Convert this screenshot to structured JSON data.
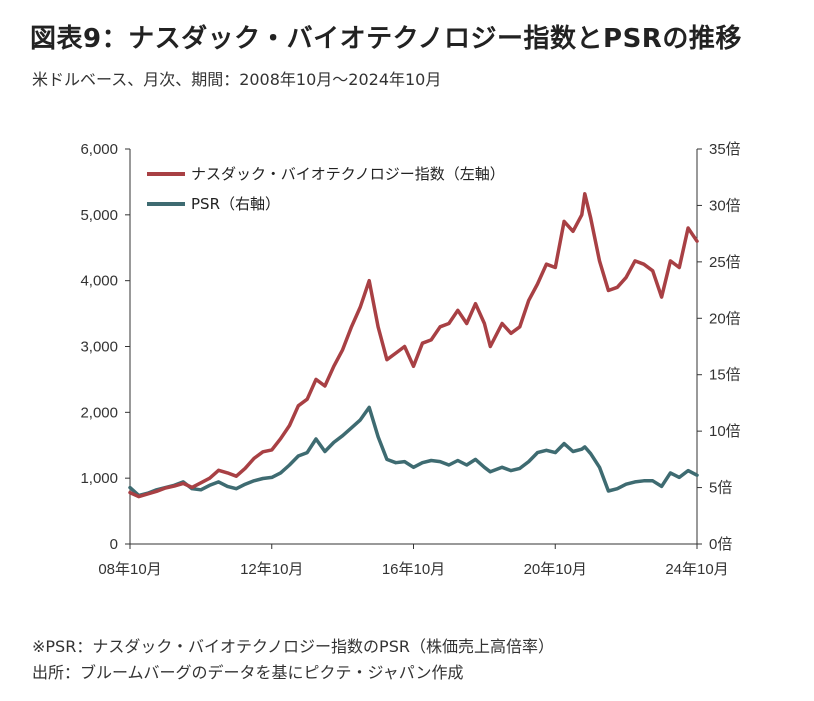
{
  "title": "図表9：ナスダック・バイオテクノロジー指数とPSRの推移",
  "subtitle": "米ドルベース、月次、期間：2008年10月～2024年10月",
  "notes": [
    "※PSR：ナスダック・バイオテクノロジー指数のPSR（株価売上高倍率）",
    "出所：ブルームバーグのデータを基にピクテ・ジャパン作成"
  ],
  "colors": {
    "index": "#a84044",
    "psr": "#3e6b71",
    "axis": "#333333"
  },
  "chart_data": {
    "type": "line",
    "grid": false,
    "legend_position": "top-left",
    "x_ticks": [
      "08年10月",
      "12年10月",
      "16年10月",
      "20年10月",
      "24年10月"
    ],
    "y_left": {
      "lim": [
        0,
        6000
      ],
      "ticks": [
        "0",
        "1,000",
        "2,000",
        "3,000",
        "4,000",
        "5,000",
        "6,000"
      ]
    },
    "y_right": {
      "lim": [
        0,
        35
      ],
      "ticks": [
        "0倍",
        "5倍",
        "10倍",
        "15倍",
        "20倍",
        "25倍",
        "30倍",
        "35倍"
      ]
    },
    "x_range": [
      "2008-10",
      "2024-10"
    ],
    "series": [
      {
        "name": "ナスダック・バイオテクノロジー指数（左軸）",
        "axis": "left",
        "color": "#a84044",
        "points": [
          [
            "2008-10",
            780
          ],
          [
            "2009-01",
            720
          ],
          [
            "2009-04",
            760
          ],
          [
            "2009-07",
            800
          ],
          [
            "2009-10",
            850
          ],
          [
            "2010-01",
            880
          ],
          [
            "2010-04",
            920
          ],
          [
            "2010-07",
            860
          ],
          [
            "2010-10",
            930
          ],
          [
            "2011-01",
            1000
          ],
          [
            "2011-04",
            1120
          ],
          [
            "2011-07",
            1080
          ],
          [
            "2011-10",
            1030
          ],
          [
            "2012-01",
            1150
          ],
          [
            "2012-04",
            1300
          ],
          [
            "2012-07",
            1400
          ],
          [
            "2012-10",
            1430
          ],
          [
            "2013-01",
            1600
          ],
          [
            "2013-04",
            1800
          ],
          [
            "2013-07",
            2100
          ],
          [
            "2013-10",
            2200
          ],
          [
            "2014-01",
            2500
          ],
          [
            "2014-04",
            2400
          ],
          [
            "2014-07",
            2700
          ],
          [
            "2014-10",
            2950
          ],
          [
            "2015-01",
            3300
          ],
          [
            "2015-04",
            3600
          ],
          [
            "2015-07",
            4000
          ],
          [
            "2015-10",
            3300
          ],
          [
            "2016-01",
            2800
          ],
          [
            "2016-04",
            2900
          ],
          [
            "2016-07",
            3000
          ],
          [
            "2016-10",
            2700
          ],
          [
            "2017-01",
            3050
          ],
          [
            "2017-04",
            3100
          ],
          [
            "2017-07",
            3300
          ],
          [
            "2017-10",
            3350
          ],
          [
            "2018-01",
            3550
          ],
          [
            "2018-04",
            3350
          ],
          [
            "2018-07",
            3650
          ],
          [
            "2018-10",
            3350
          ],
          [
            "2018-12",
            3000
          ],
          [
            "2019-04",
            3350
          ],
          [
            "2019-07",
            3200
          ],
          [
            "2019-10",
            3300
          ],
          [
            "2020-01",
            3700
          ],
          [
            "2020-04",
            3950
          ],
          [
            "2020-07",
            4250
          ],
          [
            "2020-10",
            4200
          ],
          [
            "2021-01",
            4900
          ],
          [
            "2021-04",
            4750
          ],
          [
            "2021-07",
            5000
          ],
          [
            "2021-08",
            5320
          ],
          [
            "2021-10",
            4950
          ],
          [
            "2022-01",
            4300
          ],
          [
            "2022-04",
            3850
          ],
          [
            "2022-07",
            3900
          ],
          [
            "2022-10",
            4050
          ],
          [
            "2023-01",
            4300
          ],
          [
            "2023-04",
            4250
          ],
          [
            "2023-07",
            4150
          ],
          [
            "2023-10",
            3750
          ],
          [
            "2024-01",
            4300
          ],
          [
            "2024-04",
            4200
          ],
          [
            "2024-07",
            4800
          ],
          [
            "2024-10",
            4600
          ]
        ]
      },
      {
        "name": "PSR（右軸）",
        "axis": "right",
        "color": "#3e6b71",
        "points": [
          [
            "2008-10",
            5.0
          ],
          [
            "2009-01",
            4.3
          ],
          [
            "2009-04",
            4.5
          ],
          [
            "2009-07",
            4.8
          ],
          [
            "2009-10",
            5.0
          ],
          [
            "2010-01",
            5.2
          ],
          [
            "2010-04",
            5.5
          ],
          [
            "2010-07",
            4.9
          ],
          [
            "2010-10",
            4.8
          ],
          [
            "2011-01",
            5.2
          ],
          [
            "2011-04",
            5.5
          ],
          [
            "2011-07",
            5.1
          ],
          [
            "2011-10",
            4.9
          ],
          [
            "2012-01",
            5.3
          ],
          [
            "2012-04",
            5.6
          ],
          [
            "2012-07",
            5.8
          ],
          [
            "2012-10",
            5.9
          ],
          [
            "2013-01",
            6.3
          ],
          [
            "2013-04",
            7.0
          ],
          [
            "2013-07",
            7.8
          ],
          [
            "2013-10",
            8.1
          ],
          [
            "2014-01",
            9.3
          ],
          [
            "2014-04",
            8.2
          ],
          [
            "2014-07",
            9.0
          ],
          [
            "2014-10",
            9.6
          ],
          [
            "2015-01",
            10.3
          ],
          [
            "2015-04",
            11.0
          ],
          [
            "2015-07",
            12.1
          ],
          [
            "2015-10",
            9.5
          ],
          [
            "2016-01",
            7.5
          ],
          [
            "2016-04",
            7.2
          ],
          [
            "2016-07",
            7.3
          ],
          [
            "2016-10",
            6.8
          ],
          [
            "2017-01",
            7.2
          ],
          [
            "2017-04",
            7.4
          ],
          [
            "2017-07",
            7.3
          ],
          [
            "2017-10",
            7.0
          ],
          [
            "2018-01",
            7.4
          ],
          [
            "2018-04",
            7.0
          ],
          [
            "2018-07",
            7.5
          ],
          [
            "2018-10",
            6.8
          ],
          [
            "2018-12",
            6.4
          ],
          [
            "2019-04",
            6.8
          ],
          [
            "2019-07",
            6.5
          ],
          [
            "2019-10",
            6.7
          ],
          [
            "2020-01",
            7.3
          ],
          [
            "2020-04",
            8.1
          ],
          [
            "2020-07",
            8.3
          ],
          [
            "2020-10",
            8.1
          ],
          [
            "2021-01",
            8.9
          ],
          [
            "2021-04",
            8.2
          ],
          [
            "2021-07",
            8.4
          ],
          [
            "2021-08",
            8.6
          ],
          [
            "2021-10",
            8.0
          ],
          [
            "2022-01",
            6.8
          ],
          [
            "2022-04",
            4.7
          ],
          [
            "2022-07",
            4.9
          ],
          [
            "2022-10",
            5.3
          ],
          [
            "2023-01",
            5.5
          ],
          [
            "2023-04",
            5.6
          ],
          [
            "2023-07",
            5.6
          ],
          [
            "2023-10",
            5.1
          ],
          [
            "2024-01",
            6.3
          ],
          [
            "2024-04",
            5.9
          ],
          [
            "2024-07",
            6.5
          ],
          [
            "2024-10",
            6.1
          ]
        ]
      }
    ]
  }
}
